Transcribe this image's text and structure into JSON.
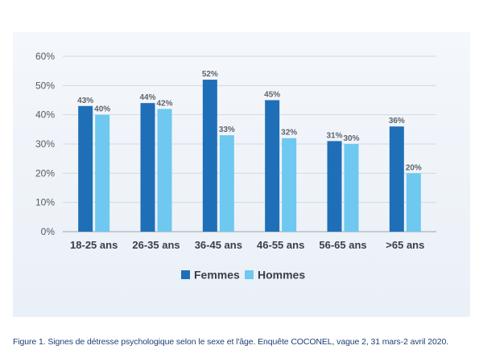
{
  "chart_data": {
    "type": "bar",
    "categories": [
      "18-25 ans",
      "26-35 ans",
      "36-45 ans",
      "46-55 ans",
      "56-65 ans",
      ">65 ans"
    ],
    "series": [
      {
        "name": "Femmes",
        "values": [
          43,
          44,
          52,
          45,
          31,
          36
        ],
        "labels": [
          "43%",
          "44%",
          "52%",
          "45%",
          "31%",
          "36%"
        ],
        "color": "#1f6fb8"
      },
      {
        "name": "Hommes",
        "values": [
          40,
          42,
          33,
          32,
          30,
          20
        ],
        "labels": [
          "40%",
          "42%",
          "33%",
          "32%",
          "30%",
          "20%"
        ],
        "color": "#6ec8f0"
      }
    ],
    "yticks": [
      "0%",
      "10%",
      "20%",
      "30%",
      "40%",
      "50%",
      "60%"
    ],
    "ylim": [
      0,
      60
    ],
    "grid": true,
    "legend_position": "bottom-center"
  },
  "caption": "Figure 1. Signes de détresse psychologique selon le sexe et l'âge. Enquête COCONEL, vague 2, 31 mars-2 avril 2020."
}
